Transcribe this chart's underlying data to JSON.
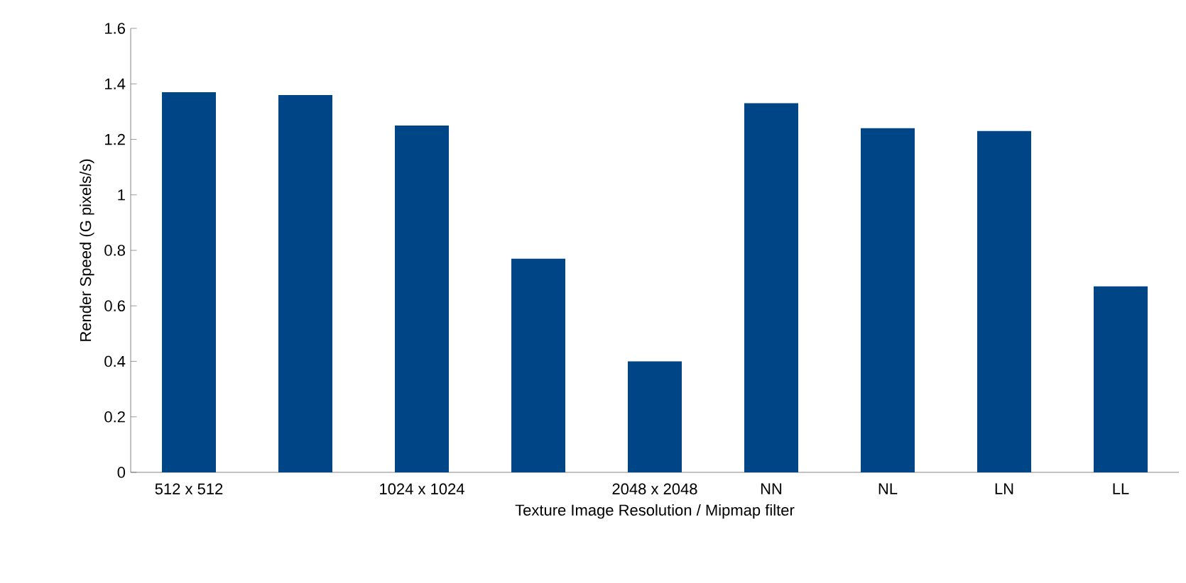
{
  "chart_data": {
    "type": "bar",
    "xlabel": "Texture Image Resolution / Mipmap filter",
    "ylabel": "Render Speed (G pixels/s)",
    "categories": [
      "512 x 512",
      null,
      "1024 x 1024",
      null,
      "2048 x 2048",
      "NN",
      "NL",
      "LN",
      "LL"
    ],
    "values": [
      1.37,
      1.36,
      1.25,
      0.77,
      0.4,
      1.33,
      1.24,
      1.23,
      0.67
    ],
    "color": "#004586",
    "ylim": [
      0,
      1.6
    ],
    "yticks": [
      0,
      0.2,
      0.4,
      0.6,
      0.8,
      1,
      1.2,
      1.4,
      1.6
    ]
  }
}
